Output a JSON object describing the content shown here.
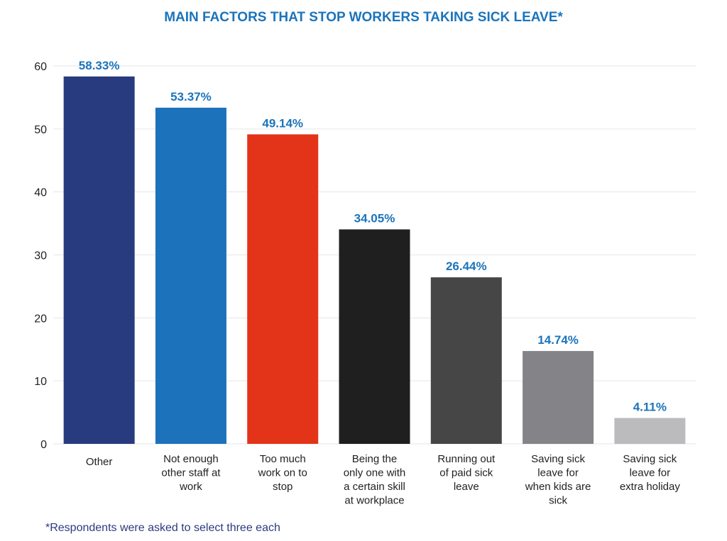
{
  "chart_data": {
    "type": "bar",
    "title": "MAIN FACTORS THAT STOP WORKERS TAKING SICK LEAVE*",
    "xlabel": "",
    "ylabel": "",
    "ylim": [
      0,
      60
    ],
    "yticks": [
      0,
      10,
      20,
      30,
      40,
      50,
      60
    ],
    "grid": true,
    "legend": "none",
    "categories": [
      "Other",
      "Not enough other staff at work",
      "Too much work on to stop",
      "Being the only one with a certain skill at workplace",
      "Running out of paid sick leave",
      "Saving sick leave for when kids are sick",
      "Saving sick leave for extra holiday"
    ],
    "category_lines": [
      [
        "Other"
      ],
      [
        "Not enough",
        "other staff at",
        "work"
      ],
      [
        "Too much",
        "work on to",
        "stop"
      ],
      [
        "Being the",
        "only one with",
        "a certain skill",
        "at workplace"
      ],
      [
        "Running out",
        "of paid sick",
        "leave"
      ],
      [
        "Saving sick",
        "leave for",
        "when kids are",
        "sick"
      ],
      [
        "Saving sick",
        "leave for",
        "extra holiday"
      ]
    ],
    "values": [
      58.33,
      53.37,
      49.14,
      34.05,
      26.44,
      14.74,
      4.11
    ],
    "value_labels": [
      "58.33%",
      "53.37%",
      "49.14%",
      "34.05%",
      "26.44%",
      "14.74%",
      "4.11%"
    ],
    "bar_colors": [
      "#283b7e",
      "#1c72bb",
      "#e33318",
      "#1f1f1f",
      "#464646",
      "#848387",
      "#bbbbbe"
    ],
    "footnote": "*Respondents were asked to select three each"
  },
  "colors": {
    "title": "#1b74bb",
    "data_label": "#1b74bb",
    "footnote": "#2b3a80",
    "gridline": "#e6e6e6",
    "axis_text": "#222222"
  }
}
